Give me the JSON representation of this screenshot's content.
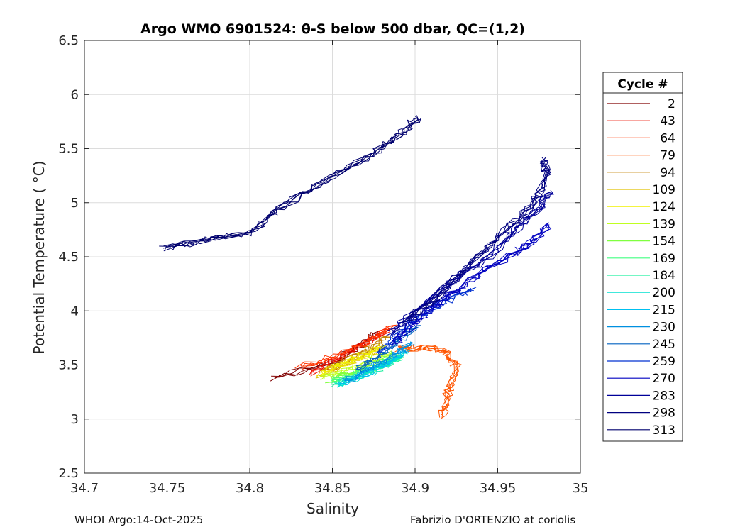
{
  "chart_data": {
    "type": "line",
    "title": "Argo WMO 6901524: θ-S below 500 dbar,  QC=(1,2)",
    "xlabel": "Salinity",
    "ylabel": "Potential Temperature ( °C)",
    "xlim": [
      34.7,
      35.0
    ],
    "ylim": [
      2.5,
      6.5
    ],
    "xticks": [
      "34.7",
      "34.75",
      "34.8",
      "34.85",
      "34.9",
      "34.95",
      "35"
    ],
    "yticks": [
      "2.5",
      "3",
      "3.5",
      "4",
      "4.5",
      "5",
      "5.5",
      "6",
      "6.5"
    ],
    "grid": true,
    "legend_title": "Cycle #",
    "legend_placement": "right-outside",
    "series": [
      {
        "name": "2",
        "color": "#800000",
        "s": [
          34.815,
          34.85,
          34.865,
          34.878
        ],
        "t": [
          3.38,
          3.52,
          3.66,
          3.8
        ]
      },
      {
        "name": "43",
        "color": "#ee1100",
        "s": [
          34.838,
          34.852,
          34.87,
          34.885
        ],
        "t": [
          3.42,
          3.55,
          3.7,
          3.84
        ]
      },
      {
        "name": "64",
        "color": "#ff3300",
        "s": [
          34.83,
          34.855,
          34.872,
          34.888
        ],
        "t": [
          3.48,
          3.6,
          3.72,
          3.86
        ]
      },
      {
        "name": "79",
        "color": "#ff5500",
        "s": [
          34.89,
          34.905,
          34.918,
          34.925,
          34.92,
          34.916
        ],
        "t": [
          3.65,
          3.66,
          3.64,
          3.48,
          3.25,
          3.02
        ]
      },
      {
        "name": "94",
        "color": "#c08000",
        "s": [
          34.845,
          34.86,
          34.872,
          34.885
        ],
        "t": [
          3.45,
          3.56,
          3.64,
          3.76
        ]
      },
      {
        "name": "109",
        "color": "#e0c000",
        "s": [
          34.84,
          34.856,
          34.868,
          34.88
        ],
        "t": [
          3.4,
          3.5,
          3.58,
          3.66
        ]
      },
      {
        "name": "124",
        "color": "#f0f000",
        "s": [
          34.843,
          34.857,
          34.87,
          34.882
        ],
        "t": [
          3.42,
          3.52,
          3.6,
          3.68
        ]
      },
      {
        "name": "139",
        "color": "#c0ff20",
        "s": [
          34.845,
          34.86,
          34.874,
          34.886
        ],
        "t": [
          3.38,
          3.47,
          3.55,
          3.62
        ]
      },
      {
        "name": "154",
        "color": "#80ff40",
        "s": [
          34.848,
          34.862,
          34.876,
          34.89
        ],
        "t": [
          3.36,
          3.44,
          3.52,
          3.6
        ]
      },
      {
        "name": "169",
        "color": "#40ff80",
        "s": [
          34.85,
          34.864,
          34.878,
          34.892
        ],
        "t": [
          3.34,
          3.42,
          3.5,
          3.58
        ]
      },
      {
        "name": "184",
        "color": "#20f0a0",
        "s": [
          34.852,
          34.866,
          34.88,
          34.893
        ],
        "t": [
          3.32,
          3.4,
          3.49,
          3.58
        ]
      },
      {
        "name": "200",
        "color": "#00e0d0",
        "s": [
          34.853,
          34.868,
          34.882,
          34.894
        ],
        "t": [
          3.31,
          3.4,
          3.5,
          3.6
        ]
      },
      {
        "name": "215",
        "color": "#00c0f0",
        "s": [
          34.855,
          34.87,
          34.884,
          34.896
        ],
        "t": [
          3.32,
          3.42,
          3.53,
          3.64
        ]
      },
      {
        "name": "230",
        "color": "#0090e0",
        "s": [
          34.858,
          34.872,
          34.886,
          34.898
        ],
        "t": [
          3.35,
          3.46,
          3.58,
          3.7
        ]
      },
      {
        "name": "245",
        "color": "#0060c0",
        "s": [
          34.865,
          34.878,
          34.89,
          34.902
        ],
        "t": [
          3.45,
          3.58,
          3.72,
          3.86
        ]
      },
      {
        "name": "259",
        "color": "#0030d0",
        "s": [
          34.878,
          34.89,
          34.905,
          34.92,
          34.935
        ],
        "t": [
          3.6,
          3.8,
          3.98,
          4.1,
          4.2
        ]
      },
      {
        "name": "270",
        "color": "#0000c0",
        "s": [
          34.888,
          34.9,
          34.915,
          34.93,
          34.95,
          34.97,
          34.982
        ],
        "t": [
          3.7,
          3.9,
          4.08,
          4.25,
          4.45,
          4.62,
          4.8
        ]
      },
      {
        "name": "283",
        "color": "#000099",
        "s": [
          34.885,
          34.905,
          34.925,
          34.945,
          34.96,
          34.975,
          34.982
        ],
        "t": [
          3.8,
          4.05,
          4.3,
          4.5,
          4.75,
          4.95,
          5.1
        ]
      },
      {
        "name": "298",
        "color": "#000080",
        "s": [
          34.895,
          34.915,
          34.935,
          34.955,
          34.972,
          34.98,
          34.978
        ],
        "t": [
          3.9,
          4.15,
          4.45,
          4.75,
          5.0,
          5.25,
          5.4
        ]
      },
      {
        "name": "313",
        "color": "#00006e",
        "s": [
          34.748,
          34.775,
          34.8,
          34.818,
          34.845,
          34.875,
          34.89,
          34.902
        ],
        "t": [
          4.58,
          4.66,
          4.72,
          4.95,
          5.2,
          5.45,
          5.62,
          5.79
        ]
      }
    ]
  },
  "footer": {
    "left": "WHOI Argo:14-Oct-2025",
    "right": "Fabrizio D'ORTENZIO at coriolis"
  }
}
